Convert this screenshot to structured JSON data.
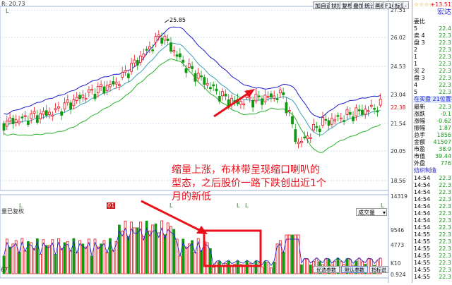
{
  "header": {
    "indicator_prefix": "R: 20.73",
    "toolbar": [
      "加自选",
      "扶扶",
      "复权",
      "叠加",
      "统计",
      "画线",
      "F10",
      "标记",
      "-"
    ],
    "stars": "☆☆☆☆",
    "code": "+13.51",
    "stock_name": "宏达"
  },
  "y_axis_price": [
    "27.51",
    "26.02",
    "24.53",
    "23.04",
    "22.38",
    "21.54",
    "20.05",
    "18.56"
  ],
  "y_axis_volume": [
    "14319",
    "9546",
    "4773",
    "K10",
    "0.924"
  ],
  "peak_label": "25.85",
  "annotation": "缩量上涨，布林带呈现缩口喇叭的型态，之后股价一路下跌创出近1个月的新低",
  "volume_panel": {
    "title": "量已复权",
    "select_label": "成交量",
    "bottom_left": "67"
  },
  "x_marks": [
    "L",
    "L",
    "L",
    "L",
    "L",
    "01"
  ],
  "bottom_buttons": [
    "优选参数",
    "默认参数",
    "指标说明"
  ],
  "right_panel": {
    "webi_label": "委比",
    "sell_label": "卖盘",
    "buy_label": "买盘",
    "sell_rows": [
      [
        "5",
        "22.4"
      ],
      [
        "4",
        "22.3"
      ],
      [
        "3",
        "22.3"
      ],
      [
        "2",
        "22.3"
      ],
      [
        "1",
        "22.3"
      ]
    ],
    "buy_rows": [
      [
        "1",
        "22.3"
      ],
      [
        "2",
        "22.3"
      ],
      [
        "3",
        "22.3"
      ],
      [
        "4",
        "22.3"
      ],
      [
        "5",
        "22.3"
      ]
    ],
    "status_line": "在买盘 21位置有",
    "stats": [
      [
        "最新",
        "22.3"
      ],
      [
        "涨跌",
        "-0.1"
      ],
      [
        "涨幅",
        "-0.62"
      ],
      [
        "振幅",
        "1.87"
      ],
      [
        "总手",
        "1856"
      ],
      [
        "金额",
        "41507"
      ],
      [
        "市盈",
        "38.9"
      ],
      [
        "市值",
        "39.44"
      ],
      [
        "外盘",
        "776"
      ]
    ],
    "subtitle": "纺织制造",
    "ticks": [
      [
        "14:54",
        "22.3"
      ],
      [
        "14:54",
        "22.3"
      ],
      [
        "14:54",
        "22.3"
      ],
      [
        "14:54",
        "22.3"
      ],
      [
        "14:54",
        "22.3"
      ],
      [
        "14:54",
        "22.3"
      ],
      [
        "14:54",
        "22.3"
      ],
      [
        "14:54",
        "22.3"
      ],
      [
        "14:55",
        "22.3"
      ],
      [
        "14:55",
        "22.3"
      ],
      [
        "14:55",
        "22.3"
      ],
      [
        "14:55",
        "22.3"
      ],
      [
        "14:55",
        "22.3"
      ],
      [
        "14:55",
        "22.3"
      ],
      [
        "14:55",
        "22.3"
      ],
      [
        "14:55",
        "22.3"
      ],
      [
        "14:55",
        "22.3"
      ],
      [
        "14:55",
        "22.3"
      ]
    ]
  },
  "colors": {
    "up": "#e8101a",
    "down": "#119911",
    "boll": "#1a1acc"
  }
}
